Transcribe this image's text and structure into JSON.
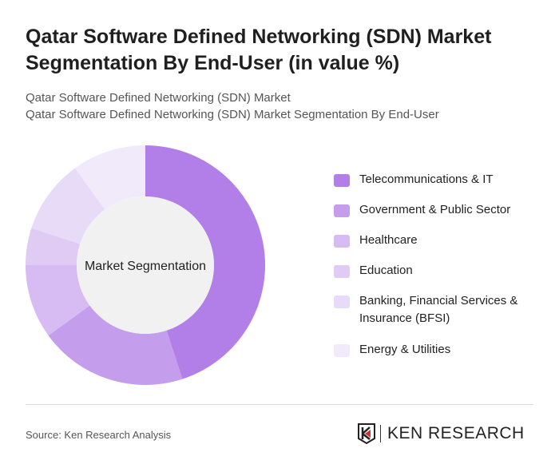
{
  "title": "Qatar Software Defined Networking (SDN) Market Segmentation By End-User (in value %)",
  "subtitle1": "Qatar Software Defined Networking (SDN) Market",
  "subtitle2": "Qatar Software Defined Networking (SDN) Market Segmentation By End-User",
  "source": "Source: Ken Research Analysis",
  "logo_text": "KEN RESEARCH",
  "chart_data": {
    "type": "pie",
    "variant": "donut",
    "center_label": "Market Segmentation",
    "legend_position": "right",
    "categories": [
      "Telecommunications & IT",
      "Government & Public Sector",
      "Healthcare",
      "Education",
      "Banking, Financial Services & Insurance (BFSI)",
      "Energy & Utilities"
    ],
    "values": [
      45,
      20,
      10,
      5,
      10,
      10
    ],
    "colors": [
      "#b27fe8",
      "#c49ded",
      "#d6bcf2",
      "#dfcbf4",
      "#e8dbf7",
      "#f1eafa"
    ]
  }
}
